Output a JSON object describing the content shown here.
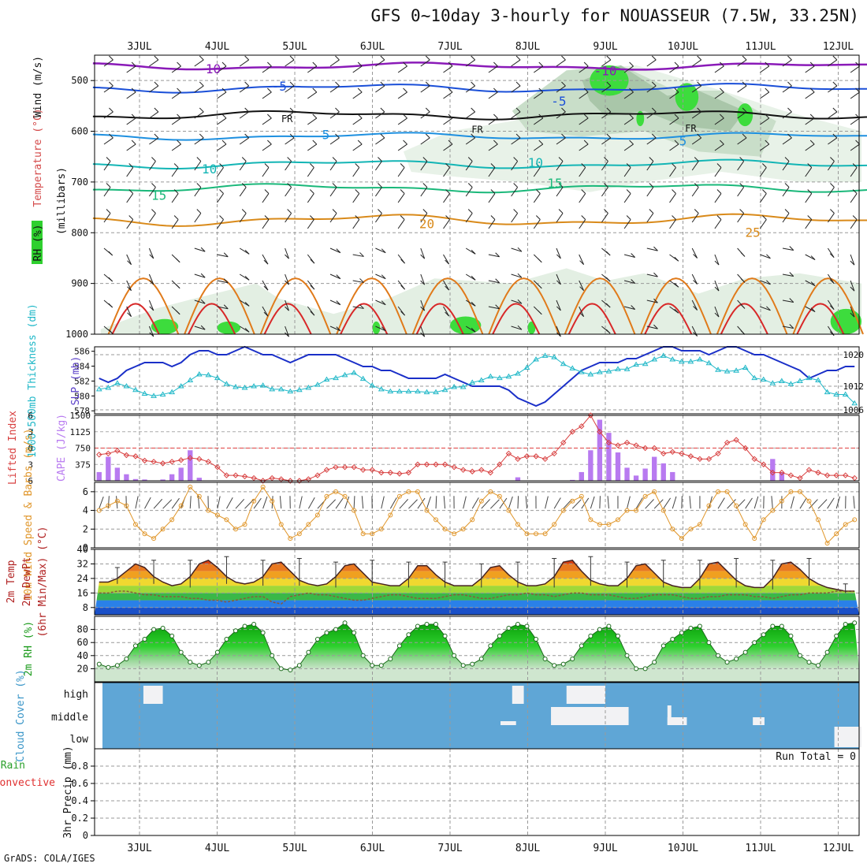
{
  "title": "GFS 0~10day 3-hourly for NOUASSEUR (7.5W, 33.25N)",
  "credit": "GrADS: COLA/IGES",
  "chart_data": [
    {
      "type": "contour",
      "panel": "upper-air",
      "ylabel_parts": [
        "RH (%)",
        "Temperature (°C)",
        "Wind (m/s)"
      ],
      "ylabel_units": "(millibars)",
      "ylim": [
        1000,
        450
      ],
      "yticks": [
        500,
        600,
        700,
        800,
        900,
        1000
      ],
      "date_labels": [
        "3JUL",
        "4JUL",
        "5JUL",
        "6JUL",
        "7JUL",
        "8JUL",
        "9JUL",
        "10JUL",
        "11JUL",
        "12JUL"
      ],
      "temperature_labels": [
        {
          "text": "-10",
          "t": 0.9,
          "p": 478
        },
        {
          "text": "-10",
          "t": 6.0,
          "p": 482
        },
        {
          "text": "-5",
          "t": 1.8,
          "p": 512
        },
        {
          "text": "-5",
          "t": 5.4,
          "p": 542
        },
        {
          "text": "FR",
          "t": 1.9,
          "p": 574
        },
        {
          "text": "FR",
          "t": 4.35,
          "p": 595
        },
        {
          "text": "FR",
          "t": 7.1,
          "p": 593
        },
        {
          "text": "5",
          "t": 2.4,
          "p": 608
        },
        {
          "text": "5",
          "t": 7.0,
          "p": 620
        },
        {
          "text": "10",
          "t": 0.9,
          "p": 675
        },
        {
          "text": "10",
          "t": 5.1,
          "p": 663
        },
        {
          "text": "15",
          "t": 0.25,
          "p": 727
        },
        {
          "text": "15",
          "t": 5.35,
          "p": 703
        },
        {
          "text": "20",
          "t": 3.7,
          "p": 783
        },
        {
          "text": "25",
          "t": 7.9,
          "p": 800
        }
      ],
      "freezing_level_mb": 570
    },
    {
      "type": "line",
      "panel": "pressure",
      "series": [
        {
          "name": "SLP (mb)",
          "y": [
            1014,
            1013,
            1014,
            1016,
            1017,
            1018,
            1018,
            1018,
            1017,
            1018,
            1020,
            1021,
            1021,
            1020,
            1020,
            1021,
            1022,
            1021,
            1020,
            1020,
            1019,
            1018,
            1019,
            1020,
            1020,
            1020,
            1020,
            1019,
            1018,
            1017,
            1017,
            1016,
            1016,
            1015,
            1014,
            1014,
            1014,
            1014,
            1015,
            1014,
            1013,
            1012,
            1012,
            1012,
            1012,
            1011,
            1009,
            1008,
            1007,
            1008,
            1010,
            1012,
            1014,
            1016,
            1017,
            1018,
            1018,
            1018,
            1019,
            1019,
            1020,
            1021,
            1022,
            1022,
            1021,
            1021,
            1021,
            1020,
            1021,
            1022,
            1022,
            1021,
            1020,
            1020,
            1019,
            1018,
            1017,
            1016,
            1014,
            1015,
            1016,
            1016,
            1017,
            1017
          ],
          "ylim": [
            1005,
            1022
          ],
          "yticks": [
            1006,
            1012,
            1020
          ]
        },
        {
          "name": "1000-500mb Thickness (dm)",
          "y": [
            580.9,
            581.1,
            581.7,
            581.3,
            580.8,
            580.3,
            580,
            580.2,
            580.5,
            581.3,
            582.1,
            582.9,
            582.8,
            582.4,
            581.6,
            581.2,
            581.1,
            581.3,
            581.4,
            580.9,
            580.9,
            580.6,
            580.8,
            581.1,
            581.5,
            582.2,
            582.4,
            582.8,
            583.1,
            582.3,
            581.4,
            580.9,
            580.6,
            580.6,
            580.6,
            580.6,
            580.5,
            580.5,
            580.8,
            581.2,
            581.2,
            581.8,
            582.1,
            582.6,
            582.4,
            582.6,
            583,
            583.8,
            584.9,
            585.4,
            585.2,
            584.3,
            583.7,
            583.2,
            582.9,
            583.2,
            583.3,
            583.6,
            583.6,
            584.2,
            584.3,
            584.9,
            585.4,
            584.9,
            584.6,
            584.6,
            584.9,
            584.4,
            583.5,
            583.3,
            583.4,
            583.8,
            582.4,
            582.2,
            581.7,
            582,
            581.6,
            582,
            582.4,
            582.1,
            580.5,
            580.2,
            580.2,
            579
          ],
          "ylim": [
            577.6,
            586.6
          ],
          "yticks": [
            578,
            580,
            582,
            584,
            586
          ]
        }
      ]
    },
    {
      "type": "bar+line",
      "panel": "instability",
      "series": [
        {
          "name": "CAPE (J/kg)",
          "y": [
            200,
            550,
            300,
            150,
            40,
            30,
            0,
            30,
            150,
            300,
            700,
            70,
            0,
            0,
            0,
            0,
            0,
            0,
            0,
            0,
            0,
            0,
            0,
            0,
            0,
            0,
            0,
            0,
            0,
            0,
            0,
            0,
            0,
            0,
            0,
            0,
            0,
            0,
            0,
            0,
            0,
            0,
            0,
            0,
            0,
            0,
            80,
            0,
            0,
            0,
            0,
            0,
            20,
            200,
            700,
            1400,
            1100,
            650,
            300,
            120,
            280,
            550,
            400,
            200,
            0,
            0,
            0,
            0,
            0,
            0,
            0,
            0,
            0,
            0,
            500,
            200,
            0,
            0,
            0,
            0,
            0,
            0,
            0,
            0
          ],
          "ylim": [
            0,
            1500
          ],
          "yticks": [
            375,
            750,
            1125,
            1500
          ]
        },
        {
          "name": "Lifted Index",
          "y": [
            1.2,
            1,
            0.5,
            1.3,
            1.5,
            2.3,
            2.5,
            2.8,
            2.5,
            2.2,
            1.8,
            2,
            2.5,
            3.5,
            5,
            5,
            5.2,
            5.5,
            6,
            5.5,
            5.7,
            6,
            6,
            5.7,
            5,
            4,
            3.5,
            3.5,
            3.5,
            4,
            4,
            4.5,
            4.5,
            4.7,
            4.5,
            3,
            3,
            3,
            3,
            3.5,
            4,
            4.3,
            4,
            4.5,
            3,
            1,
            2,
            1.5,
            1.5,
            2,
            1,
            -1,
            -3,
            -4,
            -6,
            -3,
            -1,
            -0.5,
            -1,
            -0.5,
            0,
            0,
            1,
            0.7,
            1,
            1.5,
            2,
            2,
            1,
            -1,
            -1.5,
            0,
            2,
            3,
            4.5,
            4.5,
            5,
            5.5,
            4,
            4.5,
            5,
            5,
            5,
            5.5
          ],
          "ylim": [
            6,
            -6
          ],
          "yticks": [
            6,
            3,
            0,
            -3,
            -6
          ],
          "dashed_line": 0
        }
      ]
    },
    {
      "type": "line",
      "panel": "surface-wind",
      "ylabel": "10m Wind Speed & Barbs (m/s)",
      "series": [
        {
          "name": "10m Wind Speed",
          "y": [
            4,
            4.5,
            5,
            4.5,
            2.5,
            1.5,
            1,
            2,
            3,
            4.5,
            6.5,
            5.5,
            4,
            3.5,
            3,
            2,
            2.5,
            5,
            6.5,
            5,
            2.5,
            1,
            1.5,
            2.5,
            3.5,
            5.5,
            6,
            5.5,
            4,
            1.5,
            1.5,
            2,
            3.5,
            5.5,
            6,
            6,
            4,
            3,
            2,
            1.5,
            2,
            3,
            5,
            6,
            5.5,
            4,
            2.5,
            1.5,
            1.5,
            1.5,
            2.5,
            4,
            5,
            5.5,
            3,
            2.5,
            2.5,
            3,
            4,
            4,
            5.5,
            6,
            4,
            2,
            1,
            2,
            2.5,
            4.5,
            6,
            6,
            4.5,
            2.5,
            1,
            3,
            4,
            5,
            6,
            6,
            5,
            3,
            0.5,
            1.5,
            2.5,
            3
          ],
          "ylim": [
            0,
            7
          ],
          "yticks": [
            0,
            2,
            4,
            6
          ]
        }
      ]
    },
    {
      "type": "line+area",
      "panel": "temperature",
      "ylabel_parts": [
        "2m Temp",
        "2m DewPt",
        "(6hr Min/Max) (°C)"
      ],
      "series": [
        {
          "name": "2m Temp",
          "y": [
            22,
            22,
            24,
            28,
            32,
            30,
            25,
            22,
            20,
            21,
            25,
            32,
            34,
            30,
            25,
            22,
            21,
            22,
            25,
            32,
            33,
            28,
            23,
            21,
            20,
            21,
            25,
            31,
            32,
            27,
            22,
            21,
            20,
            20,
            24,
            31,
            31,
            26,
            22,
            20,
            20,
            20,
            24,
            30,
            31,
            26,
            22,
            20,
            20,
            21,
            25,
            33,
            34,
            28,
            23,
            21,
            20,
            20,
            24,
            31,
            32,
            27,
            22,
            20,
            19,
            19,
            24,
            32,
            33,
            28,
            23,
            20,
            19,
            19,
            24,
            32,
            33,
            29,
            24,
            21,
            19,
            18,
            17,
            17
          ],
          "ylim": [
            4,
            40
          ],
          "yticks": [
            8,
            16,
            24,
            32,
            40
          ]
        },
        {
          "name": "2m DewPt",
          "y": [
            16,
            16,
            17,
            17,
            16,
            15,
            15,
            14,
            14,
            14,
            13,
            13,
            12,
            12,
            11,
            12,
            13,
            14,
            14,
            11,
            10,
            14,
            15,
            16,
            15,
            15,
            14,
            13,
            12,
            12,
            13,
            14,
            15,
            15,
            14,
            13,
            13,
            13,
            14,
            15,
            15,
            14,
            13,
            13,
            14,
            15,
            15,
            16,
            15,
            15,
            14,
            15,
            16,
            16,
            15,
            15,
            15,
            14,
            13,
            13,
            14,
            15,
            15,
            15,
            14,
            13,
            13,
            14,
            14,
            15,
            15,
            15,
            14,
            14,
            13,
            14,
            15,
            15,
            16,
            16,
            16,
            17,
            17,
            17
          ],
          "style": "dashed"
        }
      ]
    },
    {
      "type": "area",
      "panel": "humidity",
      "ylabel": "2m RH (%)",
      "series": [
        {
          "name": "2m RH",
          "y": [
            27,
            22,
            25,
            35,
            55,
            65,
            80,
            82,
            70,
            45,
            30,
            25,
            30,
            45,
            65,
            78,
            85,
            88,
            75,
            40,
            20,
            18,
            25,
            45,
            65,
            75,
            80,
            90,
            75,
            40,
            25,
            25,
            35,
            55,
            72,
            85,
            88,
            88,
            70,
            40,
            25,
            27,
            35,
            55,
            70,
            82,
            88,
            85,
            65,
            35,
            25,
            27,
            35,
            55,
            70,
            80,
            85,
            70,
            40,
            20,
            20,
            30,
            55,
            65,
            75,
            82,
            85,
            60,
            40,
            30,
            35,
            45,
            60,
            72,
            85,
            85,
            70,
            40,
            30,
            25,
            45,
            70,
            88,
            90
          ],
          "ylim": [
            0,
            100
          ],
          "yticks": [
            20,
            40,
            60,
            80
          ]
        }
      ]
    },
    {
      "type": "heatmap",
      "panel": "cloud",
      "ylabel": "Cloud Cover (%)",
      "levels": [
        "high",
        "middle",
        "low"
      ]
    },
    {
      "type": "bar",
      "panel": "precip",
      "ylabel_parts": [
        "Total / Rain",
        "Convective",
        "3hr Precip (mm)"
      ],
      "run_total": "Run Total = 0",
      "ylim": [
        0,
        1
      ],
      "yticks": [
        0,
        0.2,
        0.4,
        0.6,
        0.8
      ]
    }
  ]
}
